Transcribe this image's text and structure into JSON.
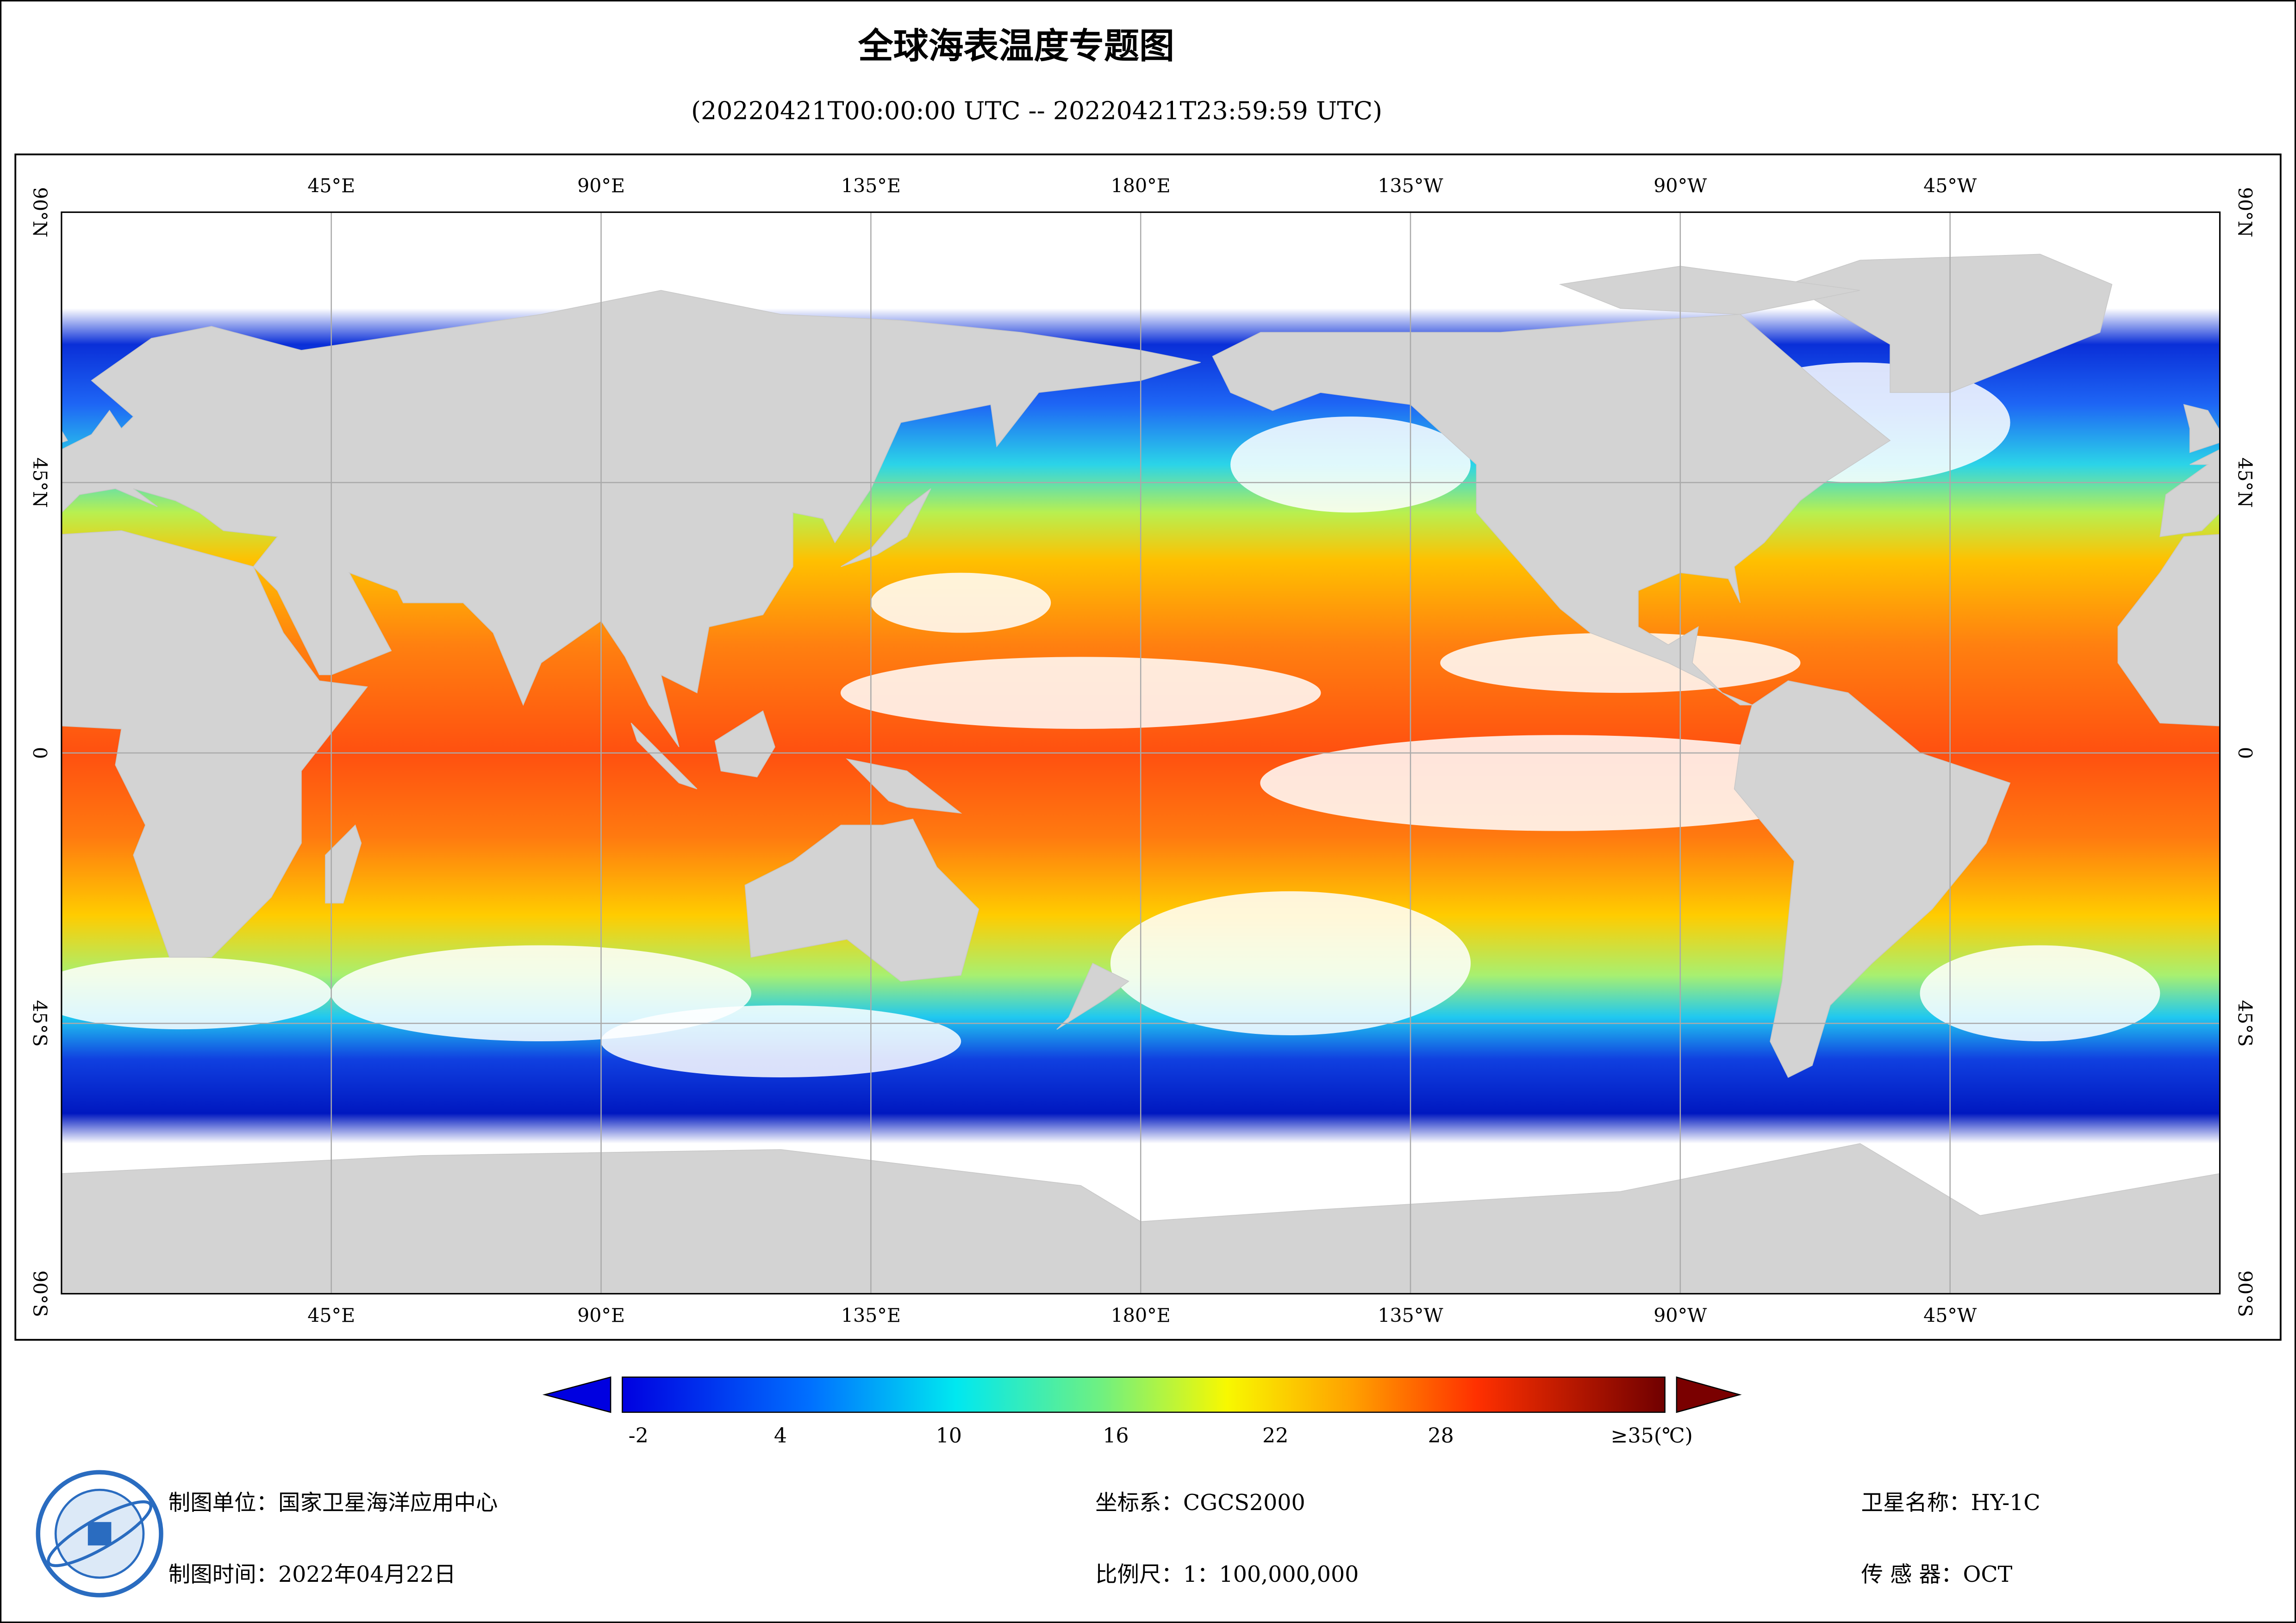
{
  "header": {
    "title": "全球海表温度专题图",
    "subtitle": "(20220421T00:00:00 UTC -- 20220421T23:59:59 UTC)"
  },
  "map": {
    "lon_labels": [
      "45°E",
      "90°E",
      "135°E",
      "180°E",
      "135°W",
      "90°W",
      "45°W"
    ],
    "lat_labels": [
      "90°N",
      "45°N",
      "0",
      "45°S",
      "90°S"
    ]
  },
  "colorbar": {
    "labels": [
      "-2",
      "4",
      "10",
      "16",
      "22",
      "28",
      "≥35(℃)"
    ]
  },
  "footer": {
    "left": [
      "制图单位：国家卫星海洋应用中心",
      "制图时间：2022年04月22日"
    ],
    "middle": [
      "坐标系：CGCS2000",
      "比例尺：1：100,000,000"
    ],
    "right": [
      "卫星名称：HY-1C",
      "传 感 器：OCT"
    ]
  }
}
